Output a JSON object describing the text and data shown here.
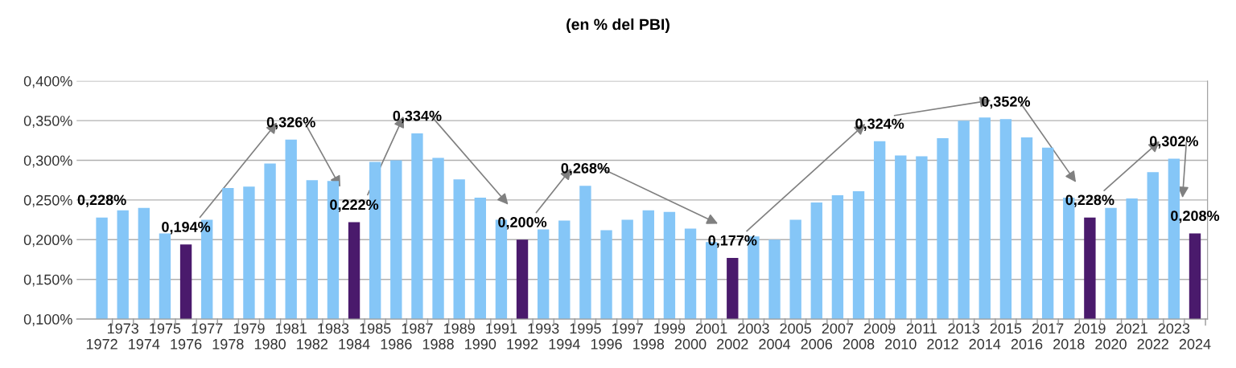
{
  "chart_data": {
    "type": "bar",
    "title": "(en % del PBI)",
    "categories": [
      "1972",
      "1973",
      "1974",
      "1975",
      "1976",
      "1977",
      "1978",
      "1979",
      "1980",
      "1981",
      "1982",
      "1983",
      "1984",
      "1985",
      "1986",
      "1987",
      "1988",
      "1989",
      "1990",
      "1991",
      "1992",
      "1993",
      "1994",
      "1995",
      "1996",
      "1997",
      "1998",
      "1999",
      "2000",
      "2001",
      "2002",
      "2003",
      "2004",
      "2005",
      "2006",
      "2007",
      "2008",
      "2009",
      "2010",
      "2011",
      "2012",
      "2013",
      "2014",
      "2015",
      "2016",
      "2017",
      "2018",
      "2019",
      "2020",
      "2021",
      "2022",
      "2023",
      "2024"
    ],
    "values": [
      0.228,
      0.237,
      0.24,
      0.208,
      0.194,
      0.225,
      0.265,
      0.267,
      0.296,
      0.326,
      0.275,
      0.274,
      0.222,
      0.298,
      0.3,
      0.334,
      0.303,
      0.276,
      0.253,
      0.225,
      0.2,
      0.213,
      0.224,
      0.268,
      0.212,
      0.225,
      0.237,
      0.235,
      0.214,
      0.197,
      0.177,
      0.204,
      0.2,
      0.225,
      0.247,
      0.256,
      0.261,
      0.324,
      0.306,
      0.305,
      0.328,
      0.35,
      0.354,
      0.352,
      0.329,
      0.316,
      0.253,
      0.228,
      0.24,
      0.252,
      0.285,
      0.302,
      0.208
    ],
    "colors": [
      "#85c6f7",
      "#85c6f7",
      "#85c6f7",
      "#85c6f7",
      "#4a1a6c",
      "#85c6f7",
      "#85c6f7",
      "#85c6f7",
      "#85c6f7",
      "#85c6f7",
      "#85c6f7",
      "#85c6f7",
      "#4a1a6c",
      "#85c6f7",
      "#85c6f7",
      "#85c6f7",
      "#85c6f7",
      "#85c6f7",
      "#85c6f7",
      "#85c6f7",
      "#4a1a6c",
      "#85c6f7",
      "#85c6f7",
      "#85c6f7",
      "#85c6f7",
      "#85c6f7",
      "#85c6f7",
      "#85c6f7",
      "#85c6f7",
      "#85c6f7",
      "#4a1a6c",
      "#85c6f7",
      "#85c6f7",
      "#85c6f7",
      "#85c6f7",
      "#85c6f7",
      "#85c6f7",
      "#85c6f7",
      "#85c6f7",
      "#85c6f7",
      "#85c6f7",
      "#85c6f7",
      "#85c6f7",
      "#85c6f7",
      "#85c6f7",
      "#85c6f7",
      "#85c6f7",
      "#4a1a6c",
      "#85c6f7",
      "#85c6f7",
      "#85c6f7",
      "#85c6f7",
      "#4a1a6c"
    ],
    "value_labels": [
      "0,228%",
      null,
      null,
      null,
      "0,194%",
      null,
      null,
      null,
      null,
      "0,326%",
      null,
      null,
      "0,222%",
      null,
      null,
      "0,334%",
      null,
      null,
      null,
      null,
      "0,200%",
      null,
      null,
      "0,268%",
      null,
      null,
      null,
      null,
      null,
      null,
      "0,177%",
      null,
      null,
      null,
      null,
      null,
      null,
      "0,324%",
      null,
      null,
      null,
      null,
      null,
      "0,352%",
      null,
      null,
      null,
      "0,228%",
      null,
      null,
      null,
      "0,302%",
      "0,208%"
    ],
    "ylim": [
      0.1,
      0.4
    ],
    "yticks": [
      {
        "value": 0.1,
        "label": "0,100%"
      },
      {
        "value": 0.15,
        "label": "0,150%"
      },
      {
        "value": 0.2,
        "label": "0,200%"
      },
      {
        "value": 0.25,
        "label": "0,250%"
      },
      {
        "value": 0.3,
        "label": "0,300%"
      },
      {
        "value": 0.35,
        "label": "0,350%"
      },
      {
        "value": 0.4,
        "label": "0,400%"
      }
    ],
    "grid": "y"
  }
}
